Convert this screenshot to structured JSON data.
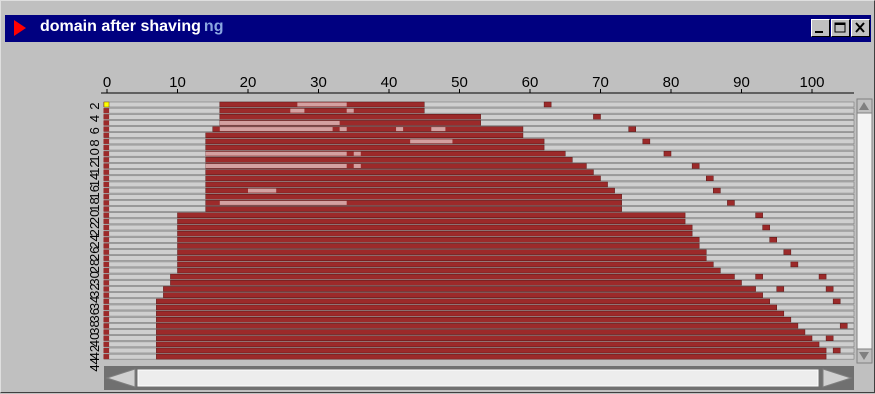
{
  "window": {
    "title": "domain after shaving",
    "title_ghost": "ng",
    "buttons": [
      {
        "name": "minimize-button",
        "icon": "minimize-icon"
      },
      {
        "name": "maximize-button",
        "icon": "maximize-icon"
      },
      {
        "name": "close-button",
        "icon": "close-icon"
      }
    ]
  },
  "colors": {
    "titlebar": "#000080",
    "bar": "#9c2a2a",
    "track": "#cfcfcf",
    "highlight": "#d4a0a0",
    "marker": "#ffff00"
  },
  "chart_data": {
    "type": "bar",
    "title": "domain after shaving",
    "x_ticks": [
      0,
      10,
      20,
      30,
      40,
      50,
      60,
      70,
      80,
      90,
      100
    ],
    "xlim": [
      0,
      104
    ],
    "y_ticks": [
      "2",
      "4",
      "6",
      "8",
      "10",
      "12",
      "14",
      "16",
      "18",
      "20",
      "22",
      "24",
      "26",
      "28",
      "30",
      "32",
      "34",
      "36",
      "38",
      "40",
      "42",
      "44"
    ],
    "rows": [
      {
        "row": 1,
        "start": 16,
        "end": 45,
        "extra": [
          62
        ],
        "light": [
          [
            27,
            34
          ]
        ],
        "marker": 0
      },
      {
        "row": 2,
        "start": 16,
        "end": 45,
        "extra": [],
        "light": [
          [
            26,
            28
          ],
          [
            34,
            35
          ]
        ]
      },
      {
        "row": 3,
        "start": 16,
        "end": 53,
        "extra": [
          69
        ],
        "light": []
      },
      {
        "row": 4,
        "start": 16,
        "end": 53,
        "extra": [],
        "light": [
          [
            16,
            33
          ]
        ]
      },
      {
        "row": 5,
        "start": 15,
        "end": 59,
        "extra": [
          74
        ],
        "light": [
          [
            16,
            32
          ],
          [
            33,
            34
          ],
          [
            41,
            42
          ],
          [
            46,
            48
          ]
        ]
      },
      {
        "row": 6,
        "start": 14,
        "end": 59,
        "extra": [],
        "light": []
      },
      {
        "row": 7,
        "start": 14,
        "end": 62,
        "extra": [
          76
        ],
        "light": [
          [
            43,
            49
          ]
        ]
      },
      {
        "row": 8,
        "start": 14,
        "end": 62,
        "extra": [],
        "light": []
      },
      {
        "row": 9,
        "start": 14,
        "end": 65,
        "extra": [
          79
        ],
        "light": [
          [
            14,
            34
          ],
          [
            35,
            36
          ]
        ]
      },
      {
        "row": 10,
        "start": 14,
        "end": 66,
        "extra": [],
        "light": []
      },
      {
        "row": 11,
        "start": 14,
        "end": 68,
        "extra": [
          83
        ],
        "light": [
          [
            14,
            34
          ],
          [
            35,
            36
          ]
        ]
      },
      {
        "row": 12,
        "start": 14,
        "end": 69,
        "extra": [],
        "light": []
      },
      {
        "row": 13,
        "start": 14,
        "end": 70,
        "extra": [
          85
        ],
        "light": []
      },
      {
        "row": 14,
        "start": 14,
        "end": 71,
        "extra": [],
        "light": []
      },
      {
        "row": 15,
        "start": 14,
        "end": 72,
        "extra": [
          86
        ],
        "light": [
          [
            20,
            24
          ]
        ]
      },
      {
        "row": 16,
        "start": 14,
        "end": 73,
        "extra": [],
        "light": []
      },
      {
        "row": 17,
        "start": 14,
        "end": 73,
        "extra": [
          88
        ],
        "light": [
          [
            16,
            34
          ]
        ]
      },
      {
        "row": 18,
        "start": 14,
        "end": 73,
        "extra": [],
        "light": []
      },
      {
        "row": 19,
        "start": 10,
        "end": 82,
        "extra": [
          92
        ],
        "light": []
      },
      {
        "row": 20,
        "start": 10,
        "end": 82,
        "extra": [],
        "light": []
      },
      {
        "row": 21,
        "start": 10,
        "end": 83,
        "extra": [
          93
        ],
        "light": []
      },
      {
        "row": 22,
        "start": 10,
        "end": 83,
        "extra": [],
        "light": []
      },
      {
        "row": 23,
        "start": 10,
        "end": 84,
        "extra": [
          94
        ],
        "light": []
      },
      {
        "row": 24,
        "start": 10,
        "end": 84,
        "extra": [],
        "light": []
      },
      {
        "row": 25,
        "start": 10,
        "end": 85,
        "extra": [
          96
        ],
        "light": []
      },
      {
        "row": 26,
        "start": 10,
        "end": 85,
        "extra": [],
        "light": []
      },
      {
        "row": 27,
        "start": 10,
        "end": 86,
        "extra": [
          97
        ],
        "light": []
      },
      {
        "row": 28,
        "start": 10,
        "end": 87,
        "extra": [],
        "light": []
      },
      {
        "row": 29,
        "start": 9,
        "end": 89,
        "extra": [
          92,
          101
        ],
        "light": []
      },
      {
        "row": 30,
        "start": 9,
        "end": 90,
        "extra": [],
        "light": []
      },
      {
        "row": 31,
        "start": 8,
        "end": 92,
        "extra": [
          95,
          102
        ],
        "light": []
      },
      {
        "row": 32,
        "start": 8,
        "end": 93,
        "extra": [],
        "light": []
      },
      {
        "row": 33,
        "start": 7,
        "end": 94,
        "extra": [
          103
        ],
        "light": []
      },
      {
        "row": 34,
        "start": 7,
        "end": 95,
        "extra": [],
        "light": []
      },
      {
        "row": 35,
        "start": 7,
        "end": 96,
        "extra": [],
        "light": []
      },
      {
        "row": 36,
        "start": 7,
        "end": 97,
        "extra": [],
        "light": []
      },
      {
        "row": 37,
        "start": 7,
        "end": 98,
        "extra": [
          104
        ],
        "light": []
      },
      {
        "row": 38,
        "start": 7,
        "end": 99,
        "extra": [],
        "light": []
      },
      {
        "row": 39,
        "start": 7,
        "end": 100,
        "extra": [
          102
        ],
        "light": []
      },
      {
        "row": 40,
        "start": 7,
        "end": 101,
        "extra": [],
        "light": []
      },
      {
        "row": 41,
        "start": 7,
        "end": 102,
        "extra": [
          103
        ],
        "light": []
      },
      {
        "row": 42,
        "start": 7,
        "end": 102,
        "extra": [],
        "light": []
      }
    ]
  }
}
